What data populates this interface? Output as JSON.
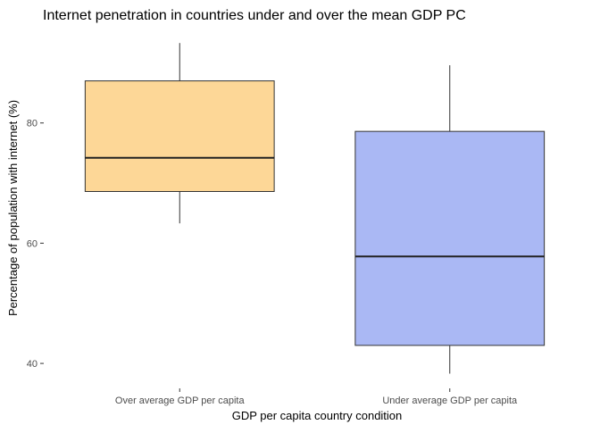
{
  "chart_data": {
    "type": "boxplot",
    "title": "Internet penetration in countries under and over the mean GDP PC",
    "xlabel": "GDP per capita country condition",
    "ylabel": "Percentage of population with internet (%)",
    "ylim": [
      36,
      96
    ],
    "yticks": [
      40,
      60,
      80
    ],
    "grid": false,
    "legend": "none",
    "categories": [
      "Over average GDP per capita",
      "Under average GDP per capita"
    ],
    "boxes": [
      {
        "category": "Over average GDP per capita",
        "min": 63.3,
        "q1": 68.6,
        "median": 74.2,
        "q3": 87.0,
        "max": 93.3,
        "color": "#FDD797"
      },
      {
        "category": "Under average GDP per capita",
        "min": 38.3,
        "q1": 43.0,
        "median": 57.8,
        "q3": 78.6,
        "max": 89.6,
        "color": "#AAB8F4"
      }
    ]
  }
}
